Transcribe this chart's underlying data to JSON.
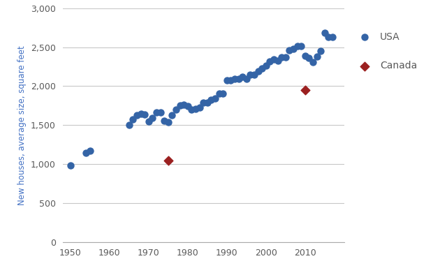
{
  "usa_data": {
    "years": [
      1950,
      1954,
      1955,
      1965,
      1966,
      1967,
      1968,
      1969,
      1970,
      1971,
      1972,
      1973,
      1974,
      1975,
      1976,
      1977,
      1978,
      1979,
      1980,
      1981,
      1982,
      1983,
      1984,
      1985,
      1986,
      1987,
      1988,
      1989,
      1990,
      1991,
      1992,
      1993,
      1994,
      1995,
      1996,
      1997,
      1998,
      1999,
      2000,
      2001,
      2002,
      2003,
      2004,
      2005,
      2006,
      2007,
      2008,
      2009,
      2010,
      2011,
      2012,
      2013,
      2014,
      2015,
      2016,
      2017
    ],
    "values": [
      983,
      1140,
      1170,
      1500,
      1575,
      1625,
      1650,
      1640,
      1545,
      1595,
      1660,
      1660,
      1560,
      1535,
      1630,
      1700,
      1750,
      1760,
      1740,
      1700,
      1710,
      1725,
      1785,
      1785,
      1825,
      1845,
      1905,
      1905,
      2080,
      2080,
      2095,
      2095,
      2120,
      2095,
      2150,
      2150,
      2190,
      2225,
      2265,
      2320,
      2340,
      2330,
      2370,
      2370,
      2460,
      2479,
      2519,
      2519,
      2392,
      2360,
      2306,
      2384,
      2453,
      2687,
      2634,
      2631
    ],
    "color": "#3464a6",
    "marker": "o",
    "label": "USA"
  },
  "canada_data": {
    "years": [
      1975,
      2010
    ],
    "values": [
      1050,
      1948
    ],
    "color": "#9b2020",
    "marker": "D",
    "label": "Canada"
  },
  "ylabel": "New houses, average size, square feet",
  "axis_label_color": "#4472c4",
  "tick_color": "#595959",
  "xlim": [
    1948,
    2020
  ],
  "ylim": [
    0,
    3000
  ],
  "yticks": [
    0,
    500,
    1000,
    1500,
    2000,
    2500,
    3000
  ],
  "xticks": [
    1950,
    1960,
    1970,
    1980,
    1990,
    2000,
    2010
  ],
  "background_color": "#ffffff",
  "grid_color": "#c8c8c8",
  "usa_marker_size": 42,
  "canada_marker_size": 42
}
